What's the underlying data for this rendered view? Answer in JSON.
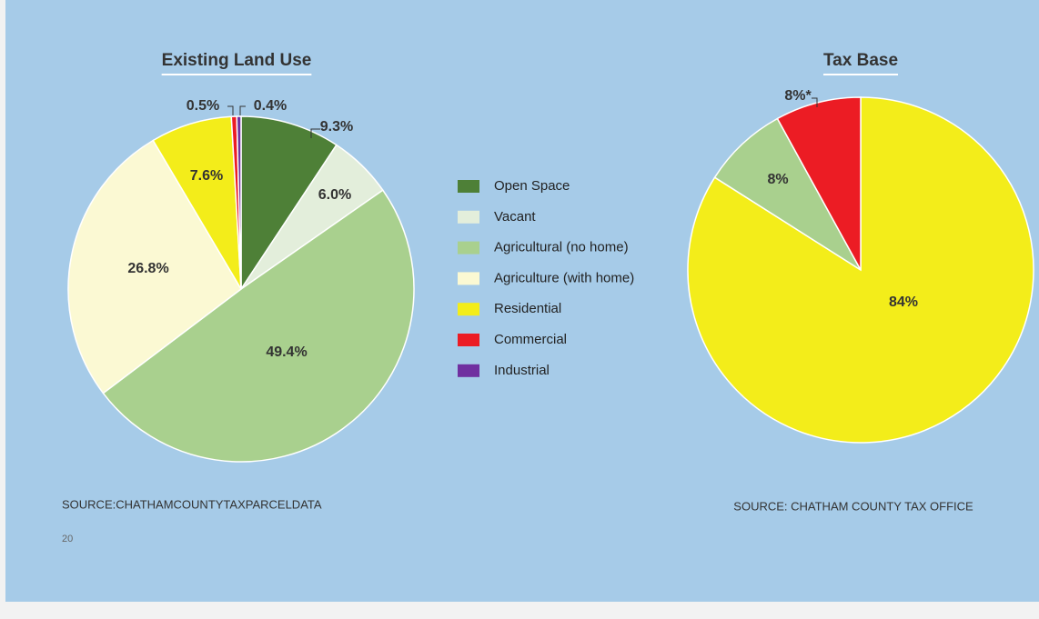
{
  "page_number": "20",
  "chart_data": [
    {
      "type": "pie",
      "title": "Existing Land Use",
      "categories": [
        "Open Space",
        "Vacant",
        "Agricultural (no home)",
        "Agriculture (with home)",
        "Residential",
        "Commercial",
        "Industrial"
      ],
      "values": [
        9.3,
        6.0,
        49.4,
        26.8,
        7.6,
        0.5,
        0.4
      ],
      "value_labels": [
        "9.3%",
        "6.0%",
        "49.4%",
        "26.8%",
        "7.6%",
        "0.5%",
        "0.4%"
      ],
      "colors": [
        "#4e8037",
        "#e3eedb",
        "#a9d08e",
        "#fbf9d3",
        "#f3ed1a",
        "#ec1c24",
        "#7030a0"
      ],
      "legend": true,
      "source": "SOURCE:CHATHAMCOUNTYTAXPARCELDATA"
    },
    {
      "type": "pie",
      "title": "Tax Base",
      "values": [
        84,
        8,
        8
      ],
      "value_labels": [
        "84%",
        "8%",
        "8%*"
      ],
      "colors": [
        "#f3ed1a",
        "#a9d08e",
        "#ec1c24"
      ],
      "source": "SOURCE: CHATHAM COUNTY TAX OFFICE"
    }
  ]
}
